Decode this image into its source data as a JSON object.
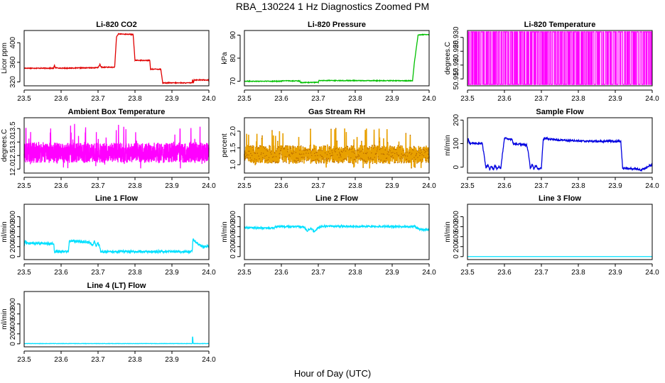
{
  "figure": {
    "title": "RBA_130224  1 Hz Diagnostics Zoomed PM",
    "xlabel": "Hour of Day (UTC)"
  },
  "chart_data": [
    {
      "type": "line",
      "title": "Li-820 CO2",
      "ylabel": "Licor ppm",
      "color": "#e00000",
      "xlim": [
        23.5,
        24.0
      ],
      "ylim": [
        312,
        425
      ],
      "xticks": [
        "23.5",
        "23.6",
        "23.7",
        "23.8",
        "23.9",
        "24.0"
      ],
      "yticks": [
        {
          "v": 320,
          "t": "320"
        },
        {
          "v": 360,
          "t": "360"
        },
        {
          "v": 400,
          "t": "400"
        }
      ],
      "noise": 0.8,
      "series": [
        {
          "x": [
            23.5,
            23.58,
            23.582,
            23.584,
            23.6,
            23.7,
            23.705,
            23.707,
            23.709,
            23.745,
            23.75,
            23.755,
            23.795,
            23.8,
            23.84,
            23.842,
            23.87,
            23.875,
            23.92,
            23.955,
            23.956,
            23.958,
            23.96,
            24.0
          ],
          "y": [
            348,
            348,
            355,
            349,
            348,
            349,
            356,
            352,
            350,
            350,
            412,
            418,
            417,
            364,
            364,
            346,
            346,
            318,
            318,
            318,
            326,
            318,
            324,
            324
          ]
        }
      ]
    },
    {
      "type": "line",
      "title": "Li-820 Pressure",
      "ylabel": "kPa",
      "color": "#00c000",
      "xlim": [
        23.5,
        24.0
      ],
      "ylim": [
        68,
        92
      ],
      "xticks": [
        "23.5",
        "23.6",
        "23.7",
        "23.8",
        "23.9",
        "24.0"
      ],
      "yticks": [
        {
          "v": 70,
          "t": "70"
        },
        {
          "v": 80,
          "t": "80"
        },
        {
          "v": 90,
          "t": "90"
        }
      ],
      "noise": 0.15,
      "series": [
        {
          "x": [
            23.5,
            23.6,
            23.605,
            23.65,
            23.652,
            23.7,
            23.702,
            23.95,
            23.955,
            23.96,
            23.97,
            23.98,
            24.0
          ],
          "y": [
            70.0,
            70.0,
            70.2,
            70.1,
            69.4,
            69.5,
            70.3,
            70.2,
            70.1,
            78,
            90,
            90.2,
            90.2
          ]
        }
      ]
    },
    {
      "type": "line",
      "title": "Li-820 Temperature",
      "ylabel": "degrees.C",
      "color": "#ff00ff",
      "xlim": [
        23.5,
        24.0
      ],
      "ylim": [
        50.9125,
        50.9325
      ],
      "xticks": [
        "23.5",
        "23.6",
        "23.7",
        "23.8",
        "23.9",
        "24.0"
      ],
      "yticks": [
        {
          "v": 50.915,
          "t": "50.915"
        },
        {
          "v": 50.92,
          "t": "50.920"
        },
        {
          "v": 50.925,
          "t": "50.925"
        },
        {
          "v": 50.93,
          "t": "50.930"
        }
      ],
      "pattern": "binary",
      "low": 50.913,
      "high": 50.932,
      "switches": 170,
      "series": [
        {
          "x": [
            23.5,
            24.0
          ],
          "y": [
            50.913,
            50.932
          ]
        }
      ]
    },
    {
      "type": "line",
      "title": "Ambient Box Temperature",
      "ylabel": "degrees.C",
      "color": "#ff00ff",
      "xlim": [
        23.5,
        24.0
      ],
      "ylim": [
        11.85,
        13.9
      ],
      "xticks": [
        "23.5",
        "23.6",
        "23.7",
        "23.8",
        "23.9",
        "24.0"
      ],
      "yticks": [
        {
          "v": 12.0,
          "t": "12.0"
        },
        {
          "v": 12.5,
          "t": "12.5"
        },
        {
          "v": 13.0,
          "t": "13.0"
        },
        {
          "v": 13.5,
          "t": "13.5"
        }
      ],
      "pattern": "noise",
      "center": 12.6,
      "amp": 0.75,
      "series": [
        {
          "x": [
            23.5,
            24.0
          ],
          "y": [
            12.6,
            12.6
          ]
        }
      ]
    },
    {
      "type": "scatter",
      "title": "Gas Stream RH",
      "ylabel": "percent",
      "color": "#e8a000",
      "point_color": "#b06000",
      "xlim": [
        23.5,
        24.0
      ],
      "ylim": [
        0.75,
        2.4
      ],
      "xticks": [
        "23.5",
        "23.6",
        "23.7",
        "23.8",
        "23.9",
        "24.0"
      ],
      "yticks": [
        {
          "v": 1.0,
          "t": "1.0"
        },
        {
          "v": 1.5,
          "t": "1.5"
        },
        {
          "v": 2.0,
          "t": "2.0"
        }
      ],
      "pattern": "noise",
      "center": 1.3,
      "amp": 0.55,
      "series": [
        {
          "x": [
            23.5,
            24.0
          ],
          "y": [
            1.3,
            1.3
          ]
        }
      ]
    },
    {
      "type": "line",
      "title": "Sample Flow",
      "ylabel": "ml/min",
      "color": "#0000e0",
      "xlim": [
        23.5,
        24.0
      ],
      "ylim": [
        -25,
        210
      ],
      "xticks": [
        "23.5",
        "23.6",
        "23.7",
        "23.8",
        "23.9",
        "24.0"
      ],
      "yticks": [
        {
          "v": 0,
          "t": "0"
        },
        {
          "v": 100,
          "t": "100"
        },
        {
          "v": 200,
          "t": "200"
        }
      ],
      "noise": 4,
      "series": [
        {
          "x": [
            23.5,
            23.502,
            23.505,
            23.54,
            23.545,
            23.55,
            23.555,
            23.56,
            23.565,
            23.57,
            23.575,
            23.58,
            23.585,
            23.59,
            23.595,
            23.6,
            23.605,
            23.62,
            23.625,
            23.628,
            23.63,
            23.66,
            23.665,
            23.67,
            23.675,
            23.68,
            23.685,
            23.69,
            23.695,
            23.7,
            23.705,
            23.71,
            23.75,
            23.8,
            23.85,
            23.9,
            23.915,
            23.92,
            23.96,
            23.97,
            23.98,
            23.99,
            24.0
          ],
          "y": [
            100,
            120,
            102,
            100,
            50,
            -5,
            10,
            -10,
            5,
            -10,
            8,
            -8,
            5,
            -5,
            60,
            120,
            122,
            118,
            95,
            100,
            98,
            95,
            60,
            -5,
            12,
            -10,
            10,
            -5,
            -8,
            -3,
            120,
            122,
            115,
            112,
            110,
            110,
            110,
            -5,
            -8,
            -12,
            -5,
            5,
            10
          ]
        }
      ]
    },
    {
      "type": "line",
      "title": "Line 1 Flow",
      "ylabel": "ml/min",
      "color": "#00e0ff",
      "xlim": [
        23.5,
        24.0
      ],
      "ylim": [
        -60,
        1050
      ],
      "xticks": [
        "23.5",
        "23.6",
        "23.7",
        "23.8",
        "23.9",
        "24.0"
      ],
      "yticks": [
        {
          "v": 0,
          "t": "0"
        },
        {
          "v": 200,
          "t": "200"
        },
        {
          "v": 400,
          "t": "400"
        },
        {
          "v": 600,
          "t": "600"
        },
        {
          "v": 800,
          "t": "800"
        }
      ],
      "noise": 25,
      "series": [
        {
          "x": [
            23.5,
            23.503,
            23.505,
            23.58,
            23.582,
            23.62,
            23.622,
            23.68,
            23.685,
            23.69,
            23.695,
            23.7,
            23.705,
            23.707,
            23.95,
            23.955,
            23.957,
            23.96,
            23.97,
            23.98,
            24.0
          ],
          "y": [
            200,
            350,
            270,
            260,
            100,
            100,
            320,
            280,
            220,
            300,
            210,
            280,
            180,
            100,
            100,
            110,
            360,
            310,
            260,
            210,
            200
          ]
        }
      ]
    },
    {
      "type": "line",
      "title": "Line 2 Flow",
      "ylabel": "ml/min",
      "color": "#00e0ff",
      "xlim": [
        23.5,
        24.0
      ],
      "ylim": [
        -60,
        1050
      ],
      "xticks": [
        "23.5",
        "23.6",
        "23.7",
        "23.8",
        "23.9",
        "24.0"
      ],
      "yticks": [
        {
          "v": 0,
          "t": "0"
        },
        {
          "v": 200,
          "t": "200"
        },
        {
          "v": 400,
          "t": "400"
        },
        {
          "v": 600,
          "t": "600"
        },
        {
          "v": 800,
          "t": "800"
        }
      ],
      "noise": 18,
      "series": [
        {
          "x": [
            23.5,
            23.58,
            23.585,
            23.66,
            23.67,
            23.68,
            23.69,
            23.7,
            23.71,
            23.95,
            23.96,
            23.97,
            23.98,
            24.0
          ],
          "y": [
            580,
            570,
            600,
            600,
            520,
            570,
            500,
            580,
            610,
            600,
            610,
            560,
            540,
            540
          ]
        }
      ]
    },
    {
      "type": "line",
      "title": "Line 3 Flow",
      "ylabel": "ml/min",
      "color": "#00e0ff",
      "xlim": [
        23.5,
        24.0
      ],
      "ylim": [
        -60,
        1050
      ],
      "xticks": [
        "23.5",
        "23.6",
        "23.7",
        "23.8",
        "23.9",
        "24.0"
      ],
      "yticks": [
        {
          "v": 0,
          "t": "0"
        },
        {
          "v": 200,
          "t": "200"
        },
        {
          "v": 400,
          "t": "400"
        },
        {
          "v": 600,
          "t": "600"
        },
        {
          "v": 800,
          "t": "800"
        }
      ],
      "noise": 0,
      "series": [
        {
          "x": [
            23.5,
            24.0
          ],
          "y": [
            0,
            0
          ]
        }
      ]
    },
    {
      "type": "line",
      "title": "Line 4 (LT) Flow",
      "ylabel": "ml/min",
      "color": "#00e0ff",
      "xlim": [
        23.5,
        24.0
      ],
      "ylim": [
        -60,
        1050
      ],
      "xticks": [
        "23.5",
        "23.6",
        "23.7",
        "23.8",
        "23.9",
        "24.0"
      ],
      "yticks": [
        {
          "v": 0,
          "t": "0"
        },
        {
          "v": 200,
          "t": "200"
        },
        {
          "v": 400,
          "t": "400"
        },
        {
          "v": 600,
          "t": "600"
        },
        {
          "v": 800,
          "t": "800"
        }
      ],
      "noise": 3,
      "series": [
        {
          "x": [
            23.5,
            23.955,
            23.956,
            23.957,
            23.958,
            24.0
          ],
          "y": [
            5,
            5,
            200,
            30,
            5,
            5
          ]
        }
      ]
    }
  ]
}
